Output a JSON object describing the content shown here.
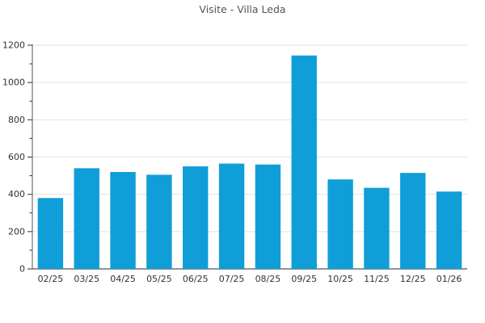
{
  "chart_data": {
    "type": "bar",
    "title": "Visite - Villa Leda",
    "categories": [
      "02/25",
      "03/25",
      "04/25",
      "05/25",
      "06/25",
      "07/25",
      "08/25",
      "09/25",
      "10/25",
      "11/25",
      "12/25",
      "01/26"
    ],
    "values": [
      380,
      540,
      520,
      505,
      550,
      565,
      560,
      1145,
      480,
      435,
      515,
      415
    ],
    "xlabel": "",
    "ylabel": "",
    "ylim": [
      0,
      1200
    ],
    "y_major_step": 200,
    "y_minor_step": 100,
    "y_tick_labels": [
      "0",
      "200",
      "400",
      "600",
      "800",
      "1000",
      "1200"
    ],
    "grid": "horizontal-major",
    "legend": "none",
    "colors": {
      "bar": "#0f9ed8",
      "grid": "#e2e2e2",
      "axis": "#555555",
      "tick": "#333333",
      "tick_label": "#333333",
      "title": "#555555",
      "background": "#ffffff"
    }
  }
}
